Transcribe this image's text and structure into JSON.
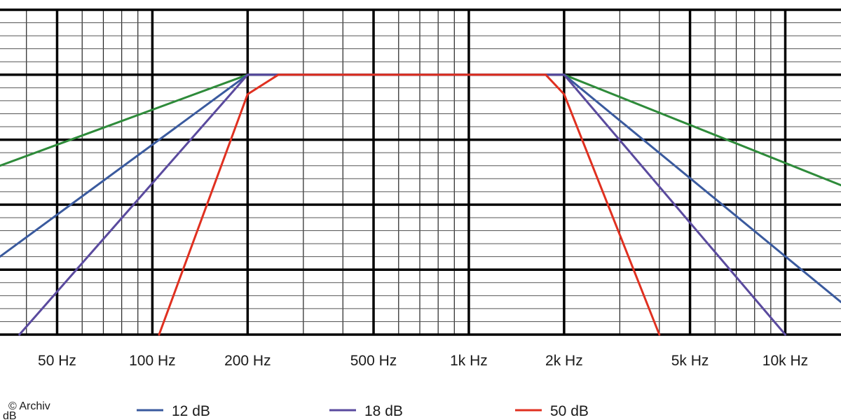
{
  "chart_data": {
    "type": "line",
    "title": "",
    "xlabel": "",
    "ylabel": "",
    "x_scale": "log",
    "x_ticks": [
      {
        "value": 50,
        "label": "50 Hz"
      },
      {
        "value": 100,
        "label": "100 Hz"
      },
      {
        "value": 200,
        "label": "200 Hz"
      },
      {
        "value": 500,
        "label": "500 Hz"
      },
      {
        "value": 1000,
        "label": "1k Hz"
      },
      {
        "value": 2000,
        "label": "2k Hz"
      },
      {
        "value": 5000,
        "label": "5k Hz"
      },
      {
        "value": 10000,
        "label": "10k Hz"
      }
    ],
    "xlim": [
      33,
      15000
    ],
    "ylim": [
      -40,
      10
    ],
    "y_unit_label": "dB",
    "grid": true,
    "legend_position": "bottom",
    "series": [
      {
        "name": "",
        "color": "#2e8b3a",
        "slope_db_per_octave": 6,
        "points": [
          [
            33,
            -14
          ],
          [
            200,
            0
          ],
          [
            250,
            0
          ],
          [
            1750,
            0
          ],
          [
            2000,
            0
          ],
          [
            15000,
            -17
          ]
        ]
      },
      {
        "name": "12 dB",
        "color": "#3a5a9e",
        "slope_db_per_octave": 12,
        "points": [
          [
            33,
            -28
          ],
          [
            200,
            0
          ],
          [
            250,
            0
          ],
          [
            1750,
            0
          ],
          [
            2000,
            0
          ],
          [
            15000,
            -35
          ]
        ]
      },
      {
        "name": "18 dB",
        "color": "#5a4a9e",
        "slope_db_per_octave": 18,
        "points": [
          [
            38,
            -40
          ],
          [
            200,
            0
          ],
          [
            250,
            0
          ],
          [
            1750,
            0
          ],
          [
            2000,
            0
          ],
          [
            10000,
            -40
          ]
        ]
      },
      {
        "name": "50 dB",
        "color": "#e03020",
        "slope_db_per_octave": 50,
        "points": [
          [
            105,
            -40
          ],
          [
            200,
            -3
          ],
          [
            250,
            0
          ],
          [
            1750,
            0
          ],
          [
            2000,
            -3
          ],
          [
            4000,
            -40
          ]
        ]
      }
    ]
  },
  "legend": {
    "items": [
      {
        "label": "12 dB",
        "color": "#3a5a9e"
      },
      {
        "label": "18 dB",
        "color": "#5a4a9e"
      },
      {
        "label": "50 dB",
        "color": "#e03020"
      }
    ]
  },
  "watermark": {
    "text": "© Archiv"
  }
}
